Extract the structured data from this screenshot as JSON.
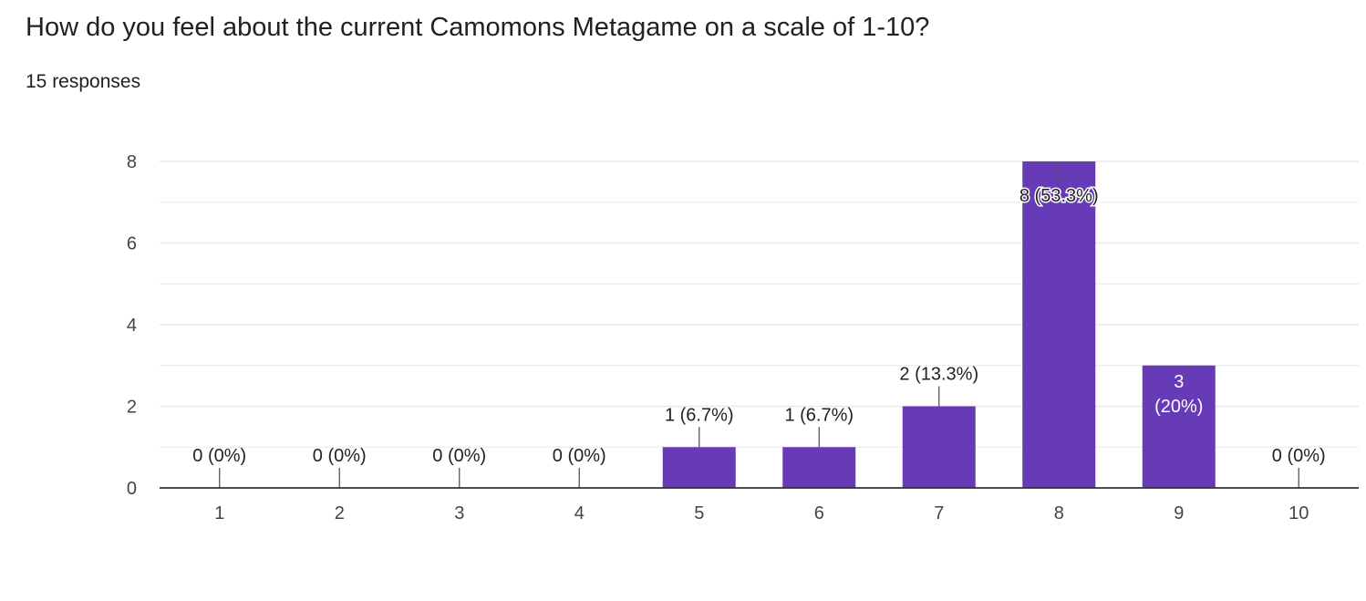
{
  "header": {
    "title": "How do you feel about the current Camomons Metagame on a scale of 1-10?",
    "responses": "15 responses"
  },
  "colors": {
    "bar": "#673ab7",
    "grid": "#e8e8e8",
    "axis": "#333333",
    "leader": "#555555"
  },
  "chart_data": {
    "type": "bar",
    "categories": [
      "1",
      "2",
      "3",
      "4",
      "5",
      "6",
      "7",
      "8",
      "9",
      "10"
    ],
    "values": [
      0,
      0,
      0,
      0,
      1,
      1,
      2,
      8,
      3,
      0
    ],
    "data_labels": [
      "0 (0%)",
      "0 (0%)",
      "0 (0%)",
      "0 (0%)",
      "1 (6.7%)",
      "1 (6.7%)",
      "2 (13.3%)",
      "8 (53.3%)",
      "3 (20%)",
      "0 (0%)"
    ],
    "title": "How do you feel about the current Camomons Metagame on a scale of 1-10?",
    "xlabel": "",
    "ylabel": "",
    "ylim": [
      0,
      8
    ],
    "yticks": [
      0,
      2,
      4,
      6,
      8
    ],
    "grid": true
  }
}
